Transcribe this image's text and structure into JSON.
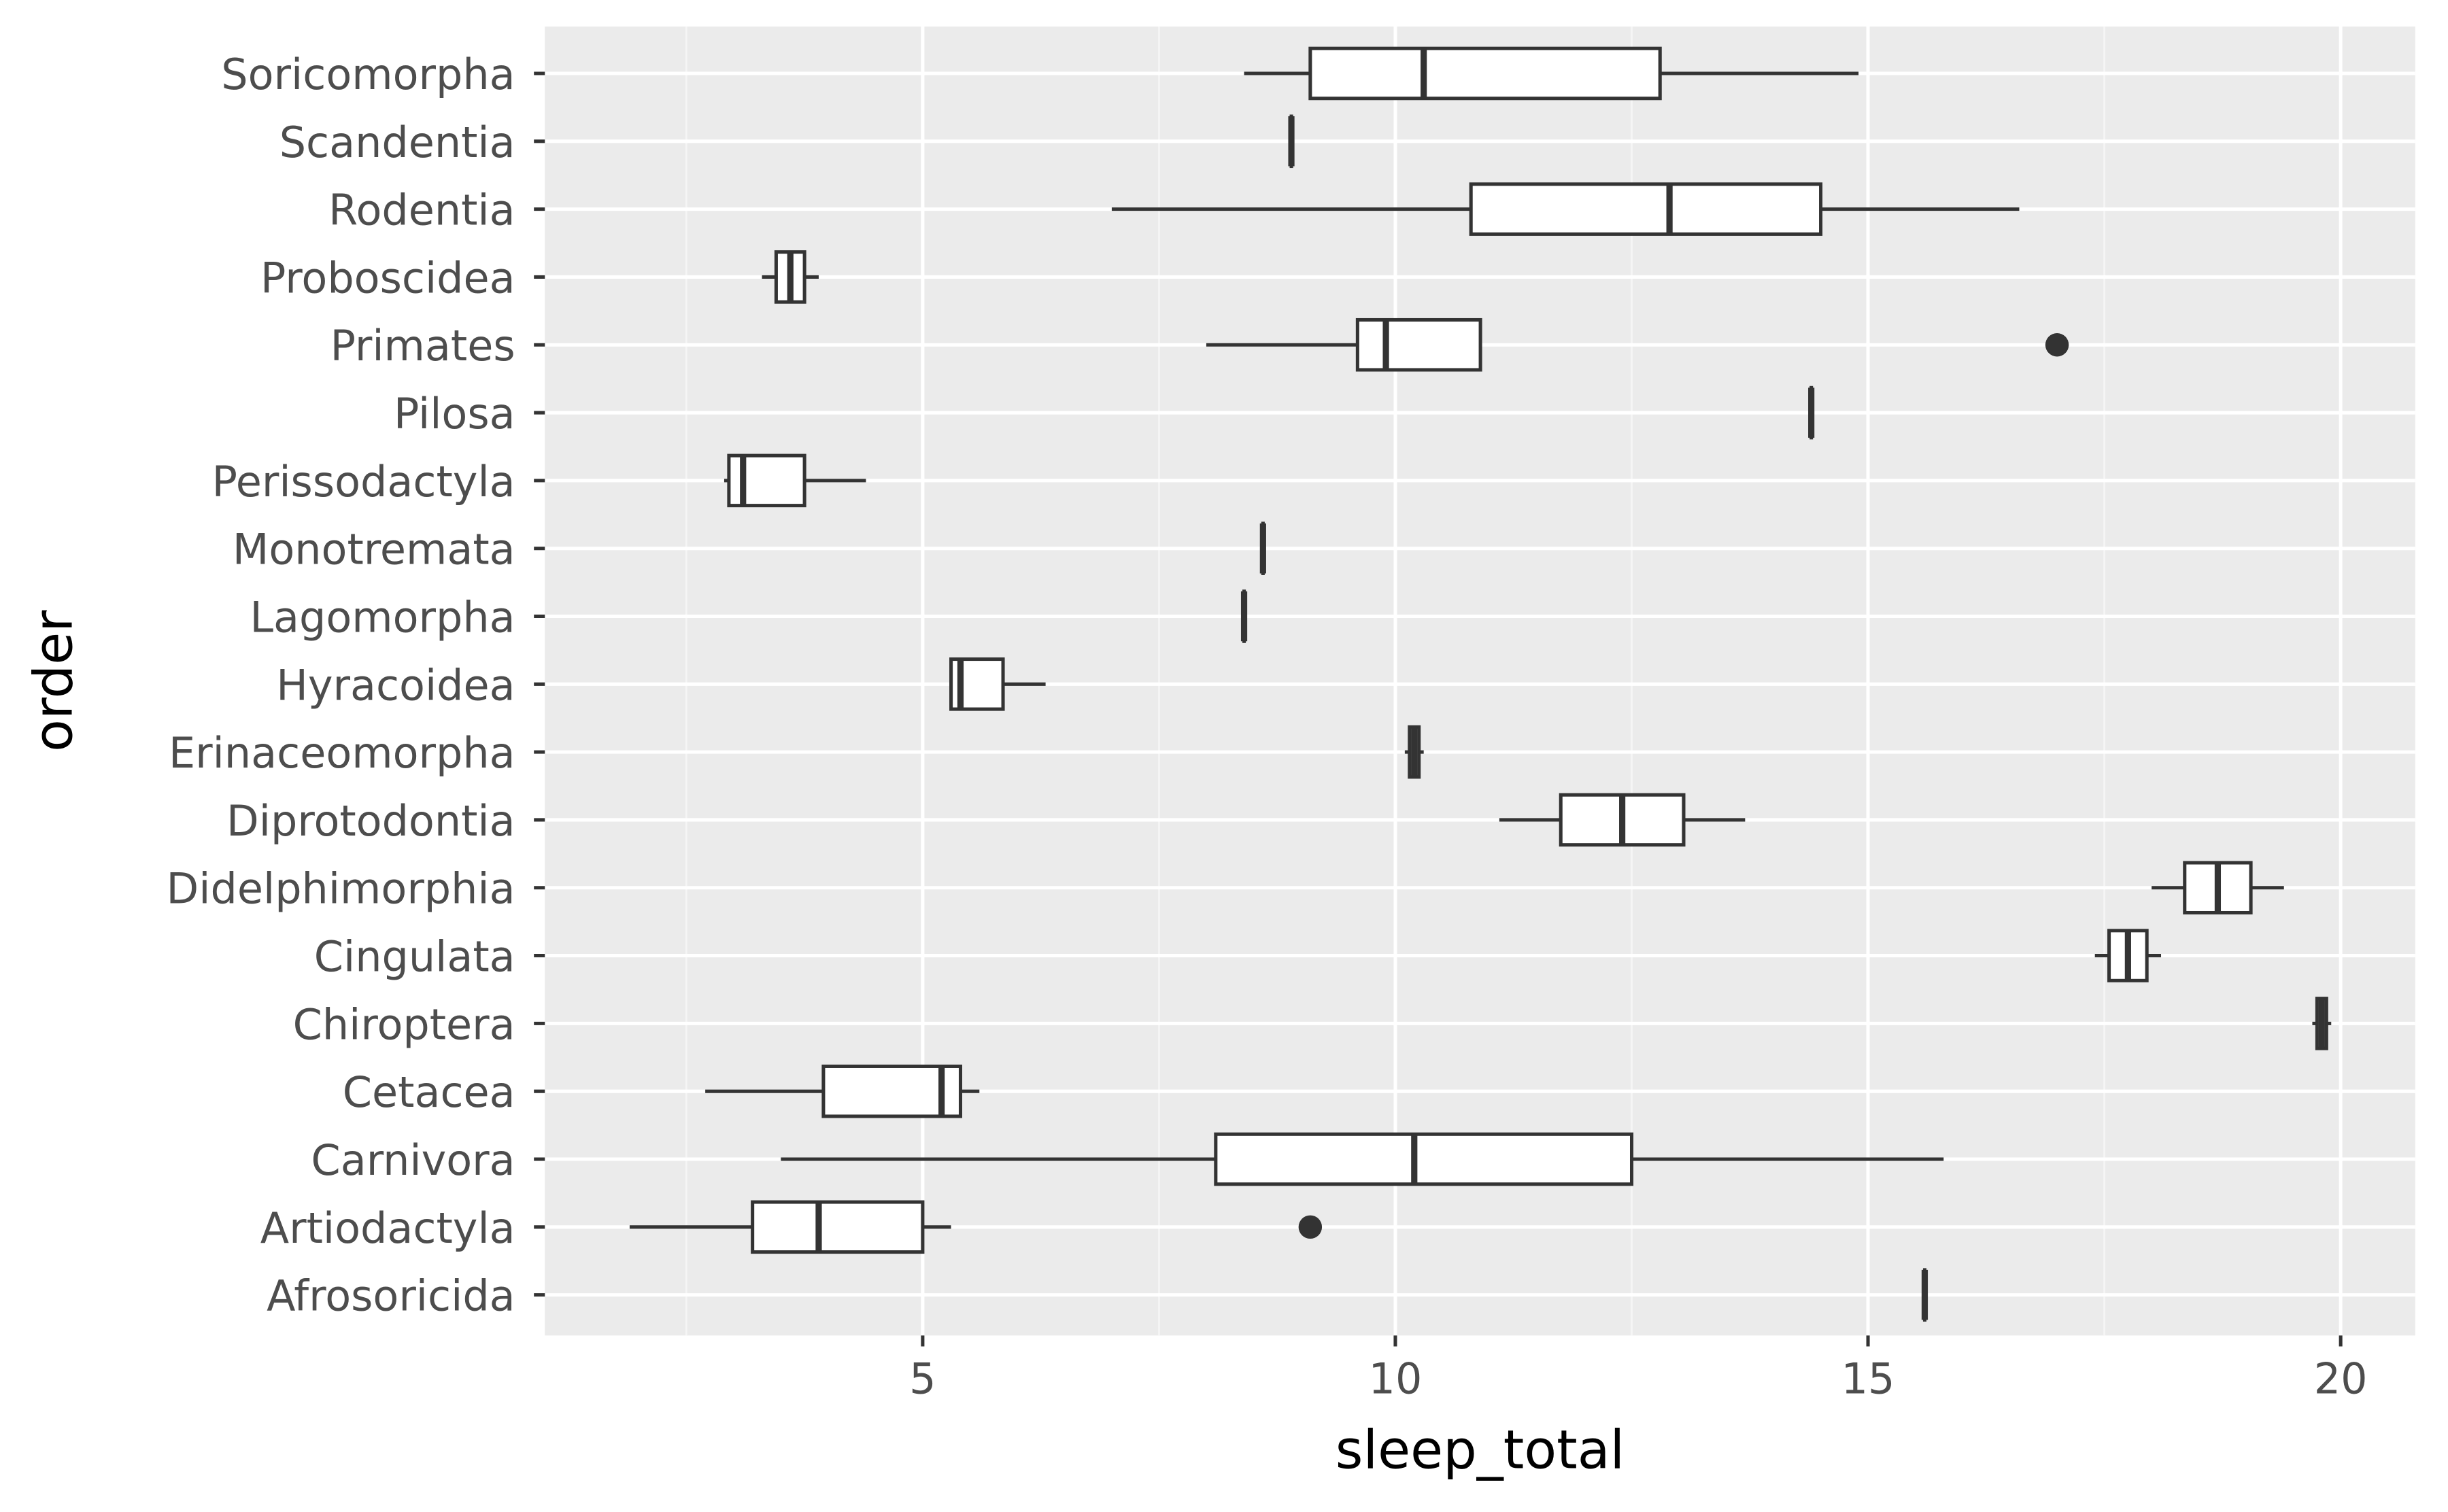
{
  "chart_data": {
    "type": "boxplot",
    "orientation": "horizontal",
    "title": "",
    "xlabel": "sleep_total",
    "ylabel": "order",
    "xlim": [
      1.3,
      20.7
    ],
    "x_ticks": [
      5,
      10,
      15,
      20
    ],
    "x_tick_labels": [
      "5",
      "10",
      "15",
      "20"
    ],
    "grid": true,
    "legend": null,
    "categories": [
      "Soricomorpha",
      "Scandentia",
      "Rodentia",
      "Proboscidea",
      "Primates",
      "Pilosa",
      "Perissodactyla",
      "Monotremata",
      "Lagomorpha",
      "Hyracoidea",
      "Erinaceomorpha",
      "Diprotodontia",
      "Didelphimorphia",
      "Cingulata",
      "Chiroptera",
      "Cetacea",
      "Carnivora",
      "Artiodactyla",
      "Afrosoricida"
    ],
    "boxes": [
      {
        "category": "Soricomorpha",
        "whisker_low": 8.4,
        "q1": 9.1,
        "median": 10.3,
        "q3": 12.8,
        "whisker_high": 14.9,
        "outliers": []
      },
      {
        "category": "Scandentia",
        "whisker_low": 8.9,
        "q1": 8.9,
        "median": 8.9,
        "q3": 8.9,
        "whisker_high": 8.9,
        "outliers": []
      },
      {
        "category": "Rodentia",
        "whisker_low": 7.0,
        "q1": 10.8,
        "median": 12.9,
        "q3": 14.5,
        "whisker_high": 16.6,
        "outliers": []
      },
      {
        "category": "Proboscidea",
        "whisker_low": 3.3,
        "q1": 3.45,
        "median": 3.6,
        "q3": 3.75,
        "whisker_high": 3.9,
        "outliers": []
      },
      {
        "category": "Primates",
        "whisker_low": 8.0,
        "q1": 9.6,
        "median": 9.9,
        "q3": 10.9,
        "whisker_high": 10.9,
        "outliers": [
          17.0
        ]
      },
      {
        "category": "Pilosa",
        "whisker_low": 14.4,
        "q1": 14.4,
        "median": 14.4,
        "q3": 14.4,
        "whisker_high": 14.4,
        "outliers": []
      },
      {
        "category": "Perissodactyla",
        "whisker_low": 2.9,
        "q1": 2.95,
        "median": 3.1,
        "q3": 3.75,
        "whisker_high": 4.4,
        "outliers": []
      },
      {
        "category": "Monotremata",
        "whisker_low": 8.6,
        "q1": 8.6,
        "median": 8.6,
        "q3": 8.6,
        "whisker_high": 8.6,
        "outliers": []
      },
      {
        "category": "Lagomorpha",
        "whisker_low": 8.4,
        "q1": 8.4,
        "median": 8.4,
        "q3": 8.4,
        "whisker_high": 8.4,
        "outliers": []
      },
      {
        "category": "Hyracoidea",
        "whisker_low": 5.3,
        "q1": 5.3,
        "median": 5.4,
        "q3": 5.85,
        "whisker_high": 6.3,
        "outliers": []
      },
      {
        "category": "Erinaceomorpha",
        "whisker_low": 10.1,
        "q1": 10.15,
        "median": 10.2,
        "q3": 10.25,
        "whisker_high": 10.3,
        "outliers": []
      },
      {
        "category": "Diprotodontia",
        "whisker_low": 11.1,
        "q1": 11.75,
        "median": 12.4,
        "q3": 13.05,
        "whisker_high": 13.7,
        "outliers": []
      },
      {
        "category": "Didelphimorphia",
        "whisker_low": 18.0,
        "q1": 18.35,
        "median": 18.7,
        "q3": 19.05,
        "whisker_high": 19.4,
        "outliers": []
      },
      {
        "category": "Cingulata",
        "whisker_low": 17.4,
        "q1": 17.55,
        "median": 17.75,
        "q3": 17.95,
        "whisker_high": 18.1,
        "outliers": []
      },
      {
        "category": "Chiroptera",
        "whisker_low": 19.7,
        "q1": 19.75,
        "median": 19.8,
        "q3": 19.85,
        "whisker_high": 19.9,
        "outliers": []
      },
      {
        "category": "Cetacea",
        "whisker_low": 2.7,
        "q1": 3.95,
        "median": 5.2,
        "q3": 5.4,
        "whisker_high": 5.6,
        "outliers": []
      },
      {
        "category": "Carnivora",
        "whisker_low": 3.5,
        "q1": 8.1,
        "median": 10.2,
        "q3": 12.5,
        "whisker_high": 15.8,
        "outliers": []
      },
      {
        "category": "Artiodactyla",
        "whisker_low": 1.9,
        "q1": 3.2,
        "median": 3.9,
        "q3": 5.0,
        "whisker_high": 5.3,
        "outliers": [
          9.1
        ]
      },
      {
        "category": "Afrosoricida",
        "whisker_low": 15.6,
        "q1": 15.6,
        "median": 15.6,
        "q3": 15.6,
        "whisker_high": 15.6,
        "outliers": []
      }
    ]
  },
  "colors": {
    "panel_background": "#ebebeb",
    "grid_major": "#ffffff",
    "grid_minor": "#f5f5f5",
    "box_fill": "#ffffff",
    "box_line": "#333333",
    "axis_text": "#4d4d4d",
    "axis_title": "#000000"
  }
}
